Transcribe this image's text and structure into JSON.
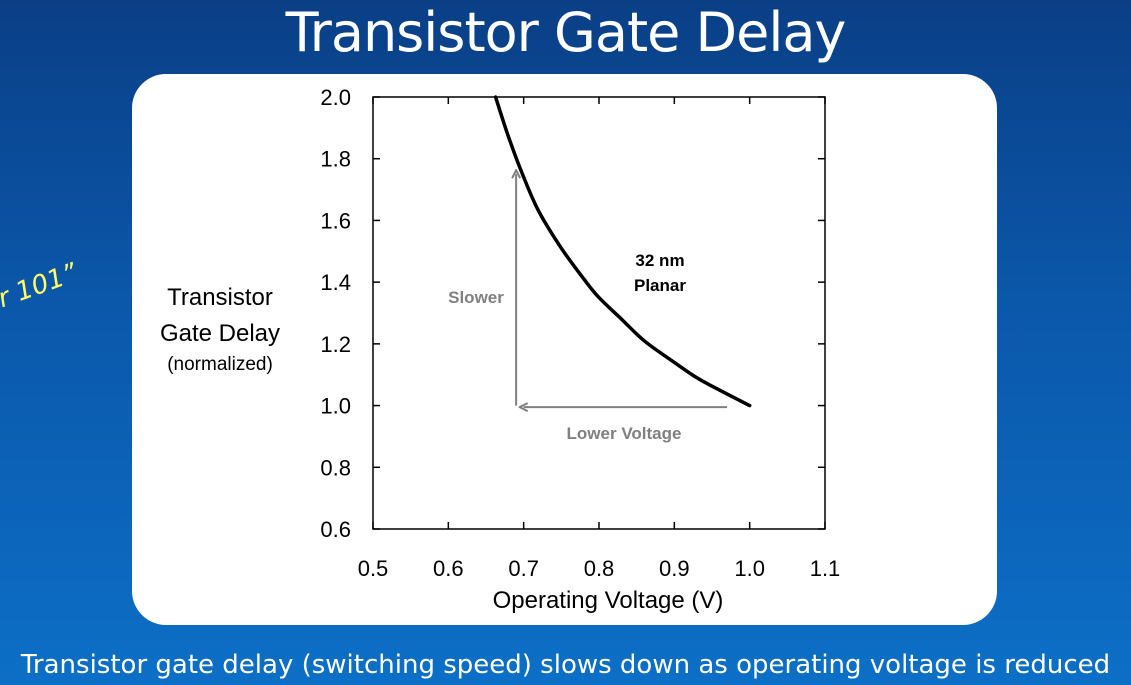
{
  "slide": {
    "title": "Transistor Gate Delay",
    "side_fragment": "r 101”",
    "footer": "Transistor gate delay (switching speed) slows down as operating voltage is reduced"
  },
  "chart_data": {
    "type": "line",
    "title": "",
    "xlabel": "Operating Voltage (V)",
    "ylabel": "Transistor Gate Delay",
    "ylabel_sub": "(normalized)",
    "xlim": [
      0.5,
      1.1
    ],
    "ylim": [
      0.6,
      2.0
    ],
    "x_ticks": [
      0.5,
      0.6,
      0.7,
      0.8,
      0.9,
      1.0,
      1.1
    ],
    "y_ticks": [
      0.6,
      0.8,
      1.0,
      1.2,
      1.4,
      1.6,
      1.8,
      2.0
    ],
    "x_tick_labels": [
      "0.5",
      "0.6",
      "0.7",
      "0.8",
      "0.9",
      "1.0",
      "1.1"
    ],
    "y_tick_labels": [
      "0.6",
      "0.8",
      "1.0",
      "1.2",
      "1.4",
      "1.6",
      "1.8",
      "2.0"
    ],
    "grid": false,
    "series": [
      {
        "name": "32 nm Planar",
        "color": "#000000",
        "x": [
          0.6627,
          0.68,
          0.7,
          0.72,
          0.75,
          0.78,
          0.8,
          0.83,
          0.86,
          0.9,
          0.93,
          0.96,
          1.0
        ],
        "y": [
          2.0,
          1.87,
          1.74,
          1.63,
          1.51,
          1.41,
          1.35,
          1.28,
          1.21,
          1.14,
          1.09,
          1.05,
          1.0
        ]
      }
    ],
    "annotations": {
      "series_label_line1": "32 nm",
      "series_label_line2": "Planar",
      "slower": "Slower",
      "lower_voltage": "Lower Voltage",
      "arrow_color": "#808080",
      "slower_arrow": {
        "x": 0.69,
        "y_from": 1.0,
        "y_to": 1.75
      },
      "lower_voltage_arrow": {
        "y": 0.995,
        "x_from": 0.97,
        "x_to": 0.7
      }
    }
  }
}
